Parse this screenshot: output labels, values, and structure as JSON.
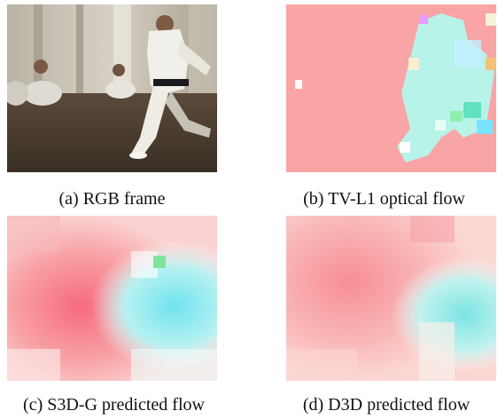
{
  "figure": {
    "panels": [
      {
        "id": "a",
        "caption": "(a) RGB frame"
      },
      {
        "id": "b",
        "caption": "(b) TV-L1 optical flow"
      },
      {
        "id": "c",
        "caption": "(c) S3D-G predicted flow"
      },
      {
        "id": "d",
        "caption": "(d) D3D predicted flow"
      }
    ]
  }
}
